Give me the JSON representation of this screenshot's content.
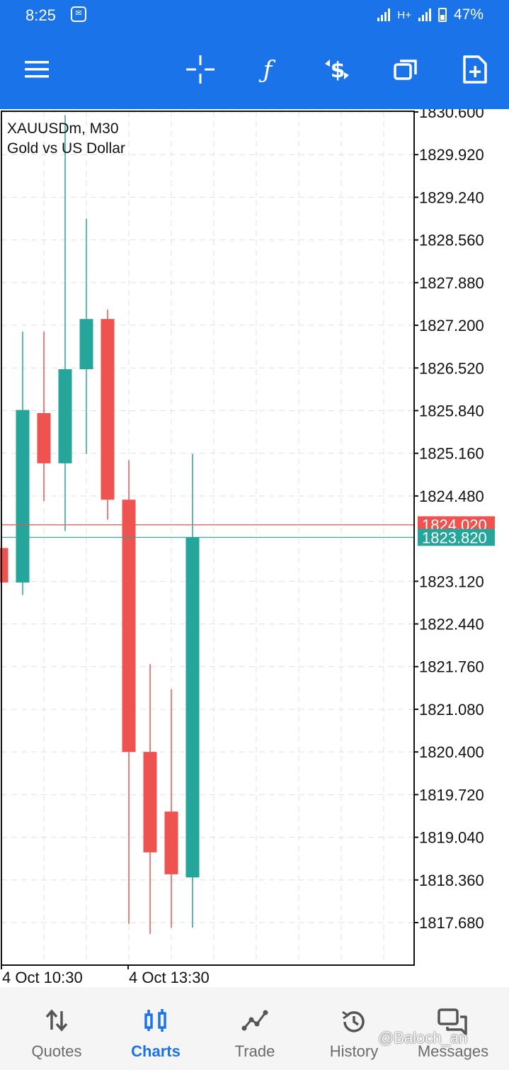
{
  "status_bar": {
    "time": "8:25",
    "network": "H+",
    "battery": "47%"
  },
  "toolbar": {
    "icons": [
      "menu-icon",
      "crosshair-icon",
      "function-icon",
      "currency-icon",
      "windows-icon",
      "new-document-icon"
    ]
  },
  "chart_title": {
    "symbol_line": "XAUUSDm, M30",
    "description": "Gold vs US Dollar"
  },
  "colors": {
    "bull": "#26a69a",
    "bear": "#ef5350",
    "toolbar": "#1a73e8",
    "grid": "#e0e0e0"
  },
  "chart_data": {
    "type": "candlestick",
    "title": "XAUUSDm, M30",
    "subtitle": "Gold vs US Dollar",
    "y_ticks": [
      "1830.600",
      "1829.920",
      "1829.240",
      "1828.560",
      "1827.880",
      "1827.200",
      "1826.520",
      "1825.840",
      "1825.160",
      "1824.480",
      "1823.120",
      "1822.440",
      "1821.760",
      "1821.080",
      "1820.400",
      "1819.720",
      "1819.040",
      "1818.360",
      "1817.680"
    ],
    "ylim": [
      1816.9,
      1830.7
    ],
    "x_ticks": [
      "4 Oct 10:30",
      "4 Oct 13:30"
    ],
    "candles": [
      {
        "open": 1823.65,
        "high": 1823.65,
        "low": 1822.55,
        "close": 1823.1
      },
      {
        "open": 1823.1,
        "high": 1827.1,
        "low": 1822.9,
        "close": 1825.85
      },
      {
        "open": 1825.8,
        "high": 1827.1,
        "low": 1824.4,
        "close": 1825.0
      },
      {
        "open": 1825.0,
        "high": 1830.55,
        "low": 1823.92,
        "close": 1826.5
      },
      {
        "open": 1826.5,
        "high": 1828.9,
        "low": 1825.15,
        "close": 1827.3
      },
      {
        "open": 1827.3,
        "high": 1827.45,
        "low": 1824.1,
        "close": 1824.42
      },
      {
        "open": 1824.42,
        "high": 1825.05,
        "low": 1817.66,
        "close": 1820.4
      },
      {
        "open": 1820.4,
        "high": 1821.8,
        "low": 1817.5,
        "close": 1818.8
      },
      {
        "open": 1819.45,
        "high": 1821.4,
        "low": 1817.6,
        "close": 1818.45
      },
      {
        "open": 1818.4,
        "high": 1825.15,
        "low": 1817.6,
        "close": 1823.82
      }
    ],
    "ask": {
      "label": "1824.020",
      "value": 1824.02
    },
    "bid": {
      "label": "1823.820",
      "value": 1823.82
    },
    "grid": true
  },
  "bottom_nav": {
    "items": [
      {
        "label": "Quotes",
        "icon": "quotes-icon",
        "active": false
      },
      {
        "label": "Charts",
        "icon": "charts-icon",
        "active": true
      },
      {
        "label": "Trade",
        "icon": "trade-icon",
        "active": false
      },
      {
        "label": "History",
        "icon": "history-icon",
        "active": false
      },
      {
        "label": "Messages",
        "icon": "messages-icon",
        "active": false
      }
    ]
  },
  "watermark": "@Baloch_an"
}
